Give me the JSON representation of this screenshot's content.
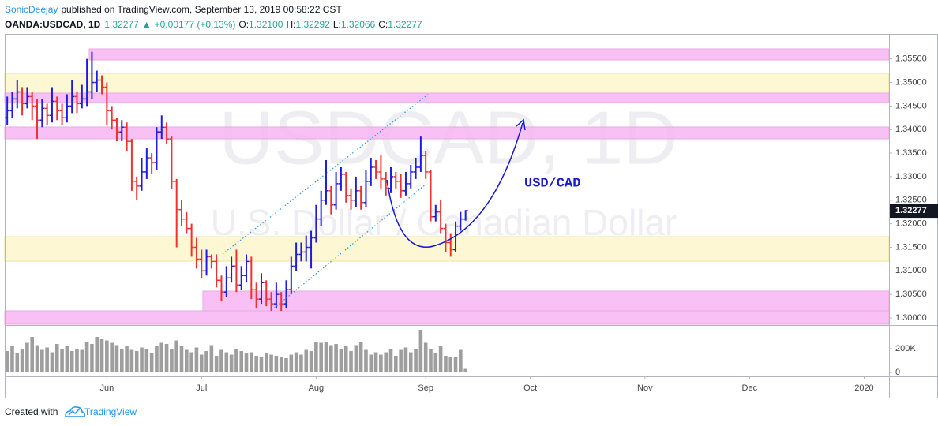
{
  "header": {
    "author": "SonicDeejay",
    "published": "published on TradingView.com, September 13, 2019 00:58:22 CST",
    "symbol": "OANDA:USDCAD, 1D",
    "last": "1.32277",
    "arrow": "▲",
    "change": "+0.00177 (+0.13%)",
    "o_label": "O:",
    "o": "1.32100",
    "h_label": "H:",
    "h": "1.32292",
    "l_label": "L:",
    "l": "1.32066",
    "c_label": "C:",
    "c": "1.32277"
  },
  "chart_data": {
    "type": "ohlc",
    "watermark": "USDCAD, 1D",
    "watermark_subtitle": "U.S. Dollar / Canadian Dollar",
    "annotation": "USD/CAD",
    "up_color": "#1c1ce6",
    "down_color": "#f23030",
    "volume_color": "#9e9e9e",
    "open": [
      1.3425,
      1.344,
      1.3465,
      1.348,
      1.3455,
      1.347,
      1.345,
      1.342,
      1.3445,
      1.343,
      1.346,
      1.344,
      1.3425,
      1.345,
      1.347,
      1.3455,
      1.3465,
      1.348,
      1.35,
      1.3505,
      1.349,
      1.344,
      1.342,
      1.3395,
      1.3405,
      1.3375,
      1.329,
      1.328,
      1.331,
      1.334,
      1.333,
      1.3395,
      1.3405,
      1.338,
      1.329,
      1.323,
      1.321,
      1.319,
      1.315,
      1.3125,
      1.31,
      1.313,
      1.312,
      1.308,
      1.3055,
      1.3085,
      1.311,
      1.307,
      1.309,
      1.312,
      1.306,
      1.304,
      1.3075,
      1.304,
      1.303,
      1.305,
      1.303,
      1.306,
      1.311,
      1.3135,
      1.314,
      1.315,
      1.317,
      1.321,
      1.325,
      1.327,
      1.324,
      1.3285,
      1.3305,
      1.326,
      1.325,
      1.327,
      1.3245,
      1.329,
      1.332,
      1.331,
      1.3295,
      1.3275,
      1.33,
      1.329,
      1.327,
      1.3285,
      1.331,
      1.332,
      1.3345,
      1.331,
      1.3215,
      1.3225,
      1.319,
      1.316,
      1.3145,
      1.3195,
      1.321
    ],
    "high": [
      1.347,
      1.348,
      1.3505,
      1.349,
      1.349,
      1.348,
      1.3465,
      1.3465,
      1.3455,
      1.349,
      1.347,
      1.3455,
      1.3475,
      1.3505,
      1.348,
      1.3495,
      1.355,
      1.3565,
      1.3525,
      1.3515,
      1.35,
      1.345,
      1.3425,
      1.342,
      1.3415,
      1.338,
      1.33,
      1.334,
      1.336,
      1.335,
      1.3405,
      1.343,
      1.3415,
      1.3385,
      1.3295,
      1.325,
      1.3225,
      1.32,
      1.317,
      1.3145,
      1.3145,
      1.3135,
      1.3135,
      1.309,
      1.311,
      1.313,
      1.3145,
      1.311,
      1.3135,
      1.313,
      1.3075,
      1.3095,
      1.308,
      1.3055,
      1.3075,
      1.3055,
      1.308,
      1.313,
      1.316,
      1.316,
      1.3175,
      1.3185,
      1.324,
      1.327,
      1.3335,
      1.328,
      1.331,
      1.332,
      1.331,
      1.3275,
      1.33,
      1.328,
      1.3315,
      1.334,
      1.3335,
      1.3345,
      1.331,
      1.332,
      1.331,
      1.3305,
      1.331,
      1.3325,
      1.334,
      1.3385,
      1.3355,
      1.3315,
      1.324,
      1.325,
      1.32,
      1.318,
      1.3205,
      1.3225,
      1.32292
    ],
    "low": [
      1.341,
      1.3425,
      1.3445,
      1.343,
      1.3445,
      1.342,
      1.338,
      1.3405,
      1.341,
      1.3415,
      1.342,
      1.341,
      1.3415,
      1.3435,
      1.3435,
      1.3445,
      1.345,
      1.3465,
      1.348,
      1.3475,
      1.341,
      1.34,
      1.3375,
      1.3375,
      1.3355,
      1.327,
      1.325,
      1.327,
      1.3295,
      1.3305,
      1.3315,
      1.338,
      1.337,
      1.3275,
      1.315,
      1.3195,
      1.318,
      1.313,
      1.3105,
      1.3085,
      1.309,
      1.3105,
      1.3065,
      1.3035,
      1.3045,
      1.3075,
      1.3055,
      1.306,
      1.3075,
      1.304,
      1.302,
      1.303,
      1.3025,
      1.3015,
      1.302,
      1.3015,
      1.302,
      1.305,
      1.31,
      1.312,
      1.312,
      1.3105,
      1.316,
      1.3195,
      1.324,
      1.322,
      1.323,
      1.327,
      1.3245,
      1.323,
      1.3235,
      1.323,
      1.3235,
      1.328,
      1.3295,
      1.3275,
      1.326,
      1.3265,
      1.3275,
      1.3255,
      1.326,
      1.3275,
      1.3295,
      1.331,
      1.3295,
      1.3205,
      1.3205,
      1.318,
      1.314,
      1.313,
      1.314,
      1.3185,
      1.32066
    ],
    "close": [
      1.344,
      1.3465,
      1.348,
      1.3455,
      1.347,
      1.345,
      1.342,
      1.3445,
      1.343,
      1.346,
      1.344,
      1.3425,
      1.345,
      1.347,
      1.3455,
      1.3465,
      1.348,
      1.35,
      1.3505,
      1.349,
      1.344,
      1.342,
      1.3395,
      1.3405,
      1.3375,
      1.329,
      1.328,
      1.331,
      1.334,
      1.333,
      1.3395,
      1.3405,
      1.338,
      1.329,
      1.323,
      1.321,
      1.319,
      1.315,
      1.3125,
      1.31,
      1.313,
      1.312,
      1.308,
      1.3055,
      1.3085,
      1.311,
      1.307,
      1.309,
      1.312,
      1.306,
      1.304,
      1.3075,
      1.304,
      1.303,
      1.305,
      1.303,
      1.306,
      1.311,
      1.3135,
      1.314,
      1.315,
      1.317,
      1.321,
      1.325,
      1.327,
      1.324,
      1.3285,
      1.3305,
      1.326,
      1.325,
      1.327,
      1.3245,
      1.329,
      1.332,
      1.331,
      1.3295,
      1.3275,
      1.33,
      1.329,
      1.327,
      1.3285,
      1.331,
      1.332,
      1.3345,
      1.331,
      1.3215,
      1.3225,
      1.319,
      1.316,
      1.3145,
      1.3195,
      1.321,
      1.32277
    ],
    "last_price_label": "1.32277",
    "volume": [
      180000,
      220000,
      160000,
      200000,
      250000,
      300000,
      230000,
      190000,
      210000,
      170000,
      240000,
      200000,
      220000,
      180000,
      200000,
      190000,
      260000,
      240000,
      300000,
      280000,
      270000,
      250000,
      230000,
      200000,
      220000,
      190000,
      180000,
      210000,
      200000,
      160000,
      220000,
      250000,
      240000,
      200000,
      270000,
      220000,
      190000,
      170000,
      210000,
      150000,
      180000,
      230000,
      140000,
      190000,
      170000,
      150000,
      200000,
      180000,
      160000,
      170000,
      140000,
      130000,
      160000,
      150000,
      140000,
      130000,
      120000,
      150000,
      170000,
      150000,
      190000,
      180000,
      260000,
      250000,
      260000,
      230000,
      240000,
      200000,
      220000,
      180000,
      230000,
      260000,
      190000,
      150000,
      170000,
      150000,
      170000,
      200000,
      140000,
      190000,
      210000,
      170000,
      200000,
      360000,
      250000,
      200000,
      160000,
      220000,
      140000,
      130000,
      130000,
      190000,
      30000
    ],
    "xlim": [
      -0.5,
      177
    ],
    "xticks": [
      {
        "value": 20,
        "label": "Jun"
      },
      {
        "value": 39,
        "label": "Jul"
      },
      {
        "value": 62,
        "label": "Aug"
      },
      {
        "value": 84,
        "label": "Sep"
      },
      {
        "value": 105,
        "label": "Oct"
      },
      {
        "value": 128,
        "label": "Nov"
      },
      {
        "value": 149,
        "label": "Dec"
      },
      {
        "value": 172,
        "label": "2020"
      }
    ],
    "ylim": [
      1.2985,
      1.3603
    ],
    "yticks": [
      {
        "value": 1.3,
        "label": "1.30000"
      },
      {
        "value": 1.305,
        "label": "1.30500"
      },
      {
        "value": 1.31,
        "label": "1.31000"
      },
      {
        "value": 1.315,
        "label": "1.31500"
      },
      {
        "value": 1.32,
        "label": "1.32000"
      },
      {
        "value": 1.325,
        "label": "1.32500"
      },
      {
        "value": 1.33,
        "label": "1.33000"
      },
      {
        "value": 1.335,
        "label": "1.33500"
      },
      {
        "value": 1.34,
        "label": "1.34000"
      },
      {
        "value": 1.345,
        "label": "1.34500"
      },
      {
        "value": 1.35,
        "label": "1.35000"
      },
      {
        "value": 1.355,
        "label": "1.35500"
      }
    ],
    "volume_ylim": [
      -33000,
      400000
    ],
    "volume_yticks": [
      0,
      {
        "value": 200000,
        "label": "200K"
      }
    ]
  },
  "footer": {
    "created": "Created with",
    "brand": "TradingView"
  }
}
